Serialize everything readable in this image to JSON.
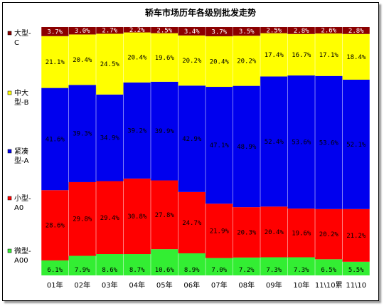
{
  "chart_data": {
    "type": "bar",
    "stacked": "percent",
    "title": "轿车市场历年各级别批发走势",
    "xlabel": "",
    "ylabel": "",
    "ylim": [
      0,
      100
    ],
    "grid": false,
    "legend_position": "left",
    "categories": [
      "01年",
      "02年",
      "03年",
      "04年",
      "05年",
      "06年",
      "07年",
      "08年",
      "09年",
      "10年",
      "11\\10累",
      "11\\10"
    ],
    "series": [
      {
        "name": "微型-A00",
        "color": "#33ee33",
        "values": [
          6.1,
          7.9,
          8.6,
          8.7,
          10.6,
          8.9,
          7.0,
          7.2,
          7.3,
          7.3,
          6.5,
          5.5
        ]
      },
      {
        "name": "小型-A0",
        "color": "#ff0000",
        "values": [
          28.6,
          29.8,
          29.4,
          30.8,
          27.8,
          24.7,
          21.9,
          20.3,
          20.4,
          19.6,
          20.2,
          21.2
        ]
      },
      {
        "name": "紧凑型-A",
        "color": "#0000ee",
        "values": [
          41.6,
          39.3,
          34.9,
          39.2,
          39.9,
          42.9,
          47.1,
          48.9,
          52.4,
          53.6,
          53.6,
          52.1
        ]
      },
      {
        "name": "中大型-B",
        "color": "#ffff00",
        "values": [
          21.1,
          20.4,
          24.5,
          20.4,
          19.6,
          20.2,
          20.4,
          20.2,
          17.4,
          16.7,
          17.1,
          18.4
        ]
      },
      {
        "name": "大型-C",
        "color": "#8b0000",
        "values": [
          3.7,
          3.0,
          2.7,
          2.2,
          2.5,
          3.4,
          3.7,
          3.5,
          2.5,
          2.8,
          2.6,
          2.8
        ]
      }
    ],
    "legend": [
      {
        "lines": [
          "大型-",
          "C"
        ],
        "series": 4
      },
      {
        "lines": [
          "中大",
          "型-B"
        ],
        "series": 3
      },
      {
        "lines": [
          "紧凑",
          "型-A"
        ],
        "series": 2
      },
      {
        "lines": [
          "小型-",
          "A0"
        ],
        "series": 1
      },
      {
        "lines": [
          "微型-",
          "A00"
        ],
        "series": 0
      }
    ]
  }
}
